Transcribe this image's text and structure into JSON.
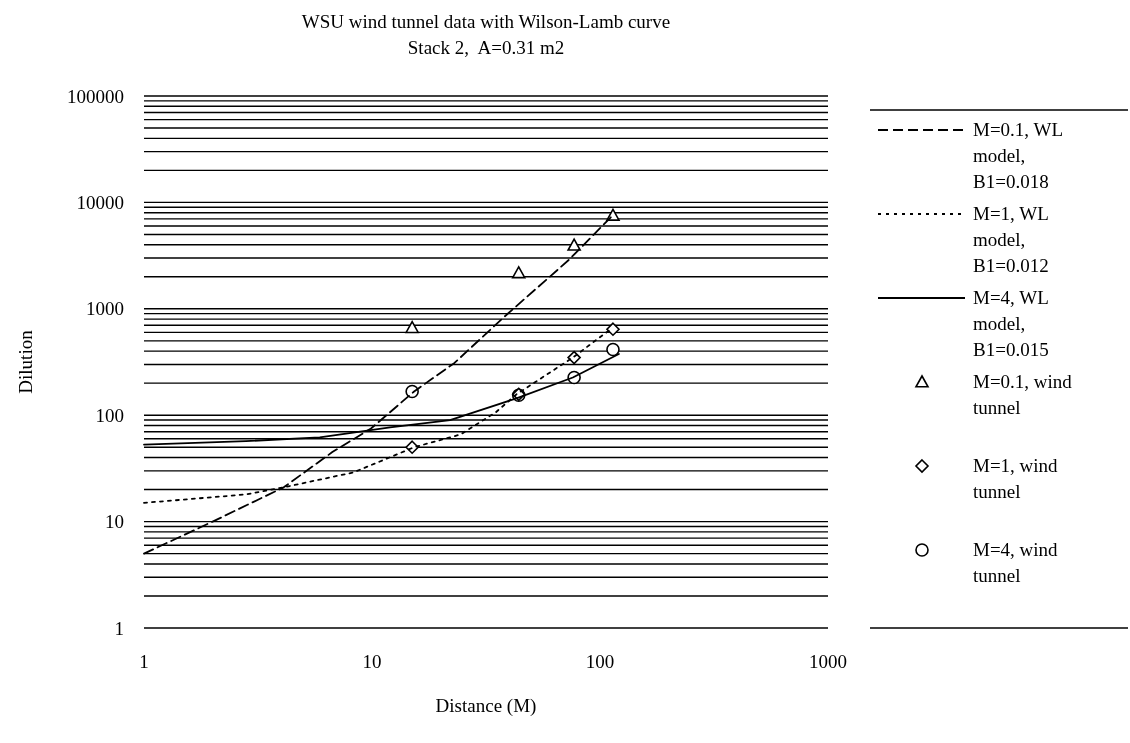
{
  "chart_data": {
    "type": "line",
    "title": "WSU wind tunnel data with Wilson-Lamb curve",
    "subtitle": "Stack 2,  A=0.31 m2",
    "xlabel": "Distance (M)",
    "ylabel": "Dilution",
    "log": "xy",
    "grid": "y",
    "legend": "right",
    "xlim": [
      1,
      1000
    ],
    "xticks": [
      1,
      10,
      100,
      1000
    ],
    "ylim": [
      1,
      100000
    ],
    "yticks": [
      1,
      {
        "value": 2,
        "label": null
      },
      {
        "value": 3,
        "label": null
      },
      {
        "value": 4,
        "label": null
      },
      {
        "value": 5,
        "label": null
      },
      {
        "value": 6,
        "label": null
      },
      {
        "value": 7,
        "label": null
      },
      {
        "value": 8,
        "label": null
      },
      {
        "value": 9,
        "label": null
      },
      10,
      {
        "value": 20,
        "label": null
      },
      {
        "value": 30,
        "label": null
      },
      {
        "value": 40,
        "label": null
      },
      {
        "value": 50,
        "label": null
      },
      {
        "value": 60,
        "label": null
      },
      {
        "value": 70,
        "label": null
      },
      {
        "value": 80,
        "label": null
      },
      {
        "value": 90,
        "label": null
      },
      100,
      {
        "value": 200,
        "label": null
      },
      {
        "value": 300,
        "label": null
      },
      {
        "value": 400,
        "label": null
      },
      {
        "value": 500,
        "label": null
      },
      {
        "value": 600,
        "label": null
      },
      {
        "value": 700,
        "label": null
      },
      {
        "value": 800,
        "label": null
      },
      {
        "value": 900,
        "label": null
      },
      1000,
      {
        "value": 2000,
        "label": null
      },
      {
        "value": 3000,
        "label": null
      },
      {
        "value": 4000,
        "label": null
      },
      {
        "value": 5000,
        "label": null
      },
      {
        "value": 6000,
        "label": null
      },
      {
        "value": 7000,
        "label": null
      },
      {
        "value": 8000,
        "label": null
      },
      {
        "value": 9000,
        "label": null
      },
      10000,
      {
        "value": 20000,
        "label": null
      },
      {
        "value": 30000,
        "label": null
      },
      {
        "value": 40000,
        "label": null
      },
      {
        "value": 50000,
        "label": null
      },
      {
        "value": 60000,
        "label": null
      },
      {
        "value": 70000,
        "label": null
      },
      {
        "value": 80000,
        "label": null
      },
      {
        "value": 90000,
        "label": null
      },
      100000
    ],
    "series": [
      {
        "name": "M=0.1, WL model, B1=0.018",
        "color": "#000000",
        "line_style": "dashed",
        "marker": "none",
        "x": [
          1,
          2,
          4.1,
          6.7,
          9.9,
          15.3,
          23,
          38,
          73,
          114
        ],
        "values": [
          5,
          10,
          21,
          45,
          75,
          167,
          310,
          840,
          2880,
          7600
        ]
      },
      {
        "name": "M=1, WL model, B1=0.012",
        "color": "#000000",
        "line_style": "dotted",
        "marker": "none",
        "x": [
          1,
          2.8,
          4.1,
          8.3,
          15.3,
          24.5,
          35,
          43,
          76,
          111
        ],
        "values": [
          15,
          18,
          21,
          29,
          50,
          66,
          107,
          157,
          348,
          640
        ]
      },
      {
        "name": "M=4, WL model, B1=0.015",
        "color": "#000000",
        "line_style": "solid",
        "marker": "none",
        "x": [
          1,
          2.8,
          5.9,
          12,
          22,
          43,
          76,
          121
        ],
        "values": [
          53,
          57,
          62,
          77,
          90,
          144,
          226,
          376
        ]
      },
      {
        "name": "M=0.1, wind tunnel",
        "type": "scatter",
        "color": "#000000",
        "marker": "triangle",
        "x": [
          15,
          44,
          77,
          114
        ],
        "values": [
          665,
          2180,
          3960,
          7560
        ]
      },
      {
        "name": "M=1, wind tunnel",
        "type": "scatter",
        "color": "#000000",
        "marker": "diamond",
        "x": [
          15,
          44,
          77,
          114
        ],
        "values": [
          50,
          157,
          348,
          643
        ]
      },
      {
        "name": "M=4, wind tunnel",
        "type": "scatter",
        "color": "#000000",
        "marker": "circle",
        "x": [
          15,
          44,
          77,
          114
        ],
        "values": [
          167,
          154,
          226,
          414
        ]
      }
    ]
  }
}
